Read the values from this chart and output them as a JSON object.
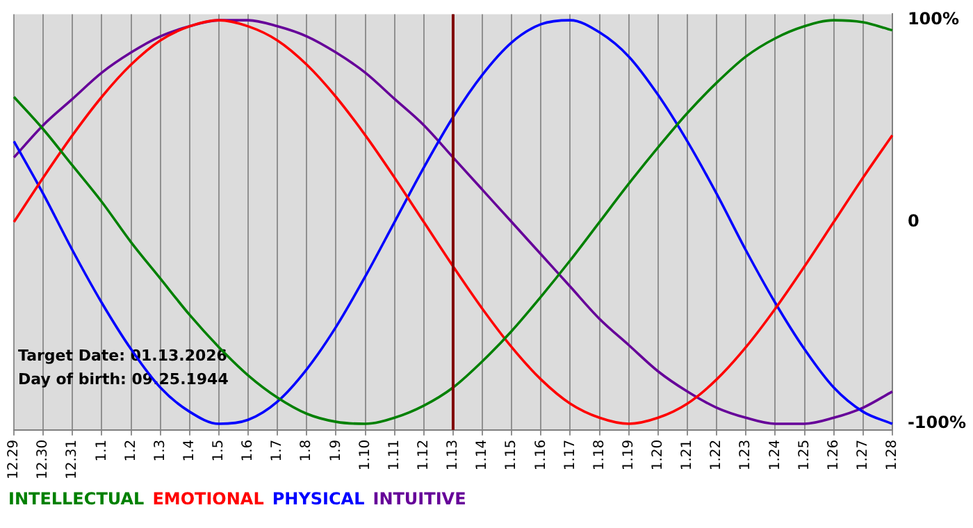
{
  "chart_data": {
    "type": "line",
    "categories": [
      "12.29",
      "12.30",
      "12.31",
      "1.1",
      "1.2",
      "1.3",
      "1.4",
      "1.5",
      "1.6",
      "1.7",
      "1.8",
      "1.9",
      "1.10",
      "1.11",
      "1.12",
      "1.13",
      "1.14",
      "1.15",
      "1.16",
      "1.17",
      "1.18",
      "1.19",
      "1.20",
      "1.21",
      "1.22",
      "1.23",
      "1.24",
      "1.25",
      "1.26",
      "1.27",
      "1.28"
    ],
    "series": [
      {
        "name": "INTELLECTUAL",
        "color": "#008000",
        "values": [
          0.62,
          0.46,
          0.28,
          0.1,
          -0.1,
          -0.28,
          -0.46,
          -0.62,
          -0.76,
          -0.87,
          -0.95,
          -0.99,
          -1.0,
          -0.97,
          -0.91,
          -0.82,
          -0.69,
          -0.54,
          -0.37,
          -0.19,
          0,
          0.19,
          0.37,
          0.54,
          0.69,
          0.82,
          0.91,
          0.97,
          1.0,
          0.99,
          0.95
        ]
      },
      {
        "name": "EMOTIONAL",
        "color": "#ff0000",
        "values": [
          0,
          0.22,
          0.43,
          0.62,
          0.78,
          0.9,
          0.97,
          1.0,
          0.97,
          0.9,
          0.78,
          0.62,
          0.43,
          0.22,
          0,
          -0.22,
          -0.43,
          -0.62,
          -0.78,
          -0.9,
          -0.97,
          -1.0,
          -0.97,
          -0.9,
          -0.78,
          -0.62,
          -0.43,
          -0.22,
          0,
          0.22,
          0.43
        ]
      },
      {
        "name": "PHYSICAL",
        "color": "#0000ff",
        "values": [
          0.4,
          0.14,
          -0.14,
          -0.4,
          -0.63,
          -0.82,
          -0.94,
          -1.0,
          -0.98,
          -0.89,
          -0.73,
          -0.52,
          -0.27,
          0,
          0.27,
          0.52,
          0.73,
          0.89,
          0.98,
          1.0,
          0.94,
          0.82,
          0.63,
          0.4,
          0.14,
          -0.14,
          -0.4,
          -0.63,
          -0.82,
          -0.94,
          -1.0
        ]
      },
      {
        "name": "INTUITIVE",
        "color": "#660099",
        "values": [
          0.32,
          0.48,
          0.61,
          0.74,
          0.84,
          0.92,
          0.97,
          1.0,
          1.0,
          0.97,
          0.92,
          0.84,
          0.74,
          0.61,
          0.48,
          0.32,
          0.16,
          0,
          -0.16,
          -0.32,
          -0.48,
          -0.61,
          -0.74,
          -0.84,
          -0.92,
          -0.97,
          -1.0,
          -1.0,
          -0.97,
          -0.92,
          -0.84
        ]
      }
    ],
    "ylim": [
      -1.03,
      1.03
    ],
    "yticks": [
      {
        "value": -1,
        "label": "-100%"
      },
      {
        "value": 0,
        "label": "0"
      },
      {
        "value": 1,
        "label": "100%"
      }
    ],
    "grid": "x",
    "legend": "bottom left",
    "marker": "none",
    "line_style": "solid",
    "ref_lines": [
      {
        "axis": "x",
        "value": "1.13",
        "color": "#800000"
      }
    ],
    "annotations": [
      "Target Date: 01.13.2026",
      "Day of birth: 09.25.1944"
    ]
  }
}
